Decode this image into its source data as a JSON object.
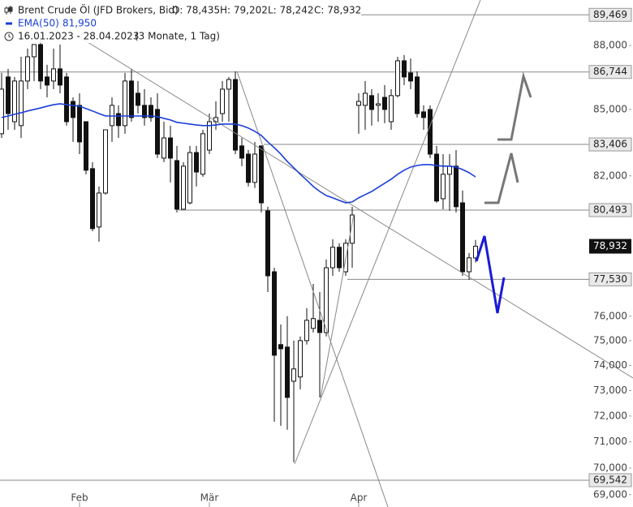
{
  "chart_data": {
    "type": "candlestick",
    "title": "Brent Crude Öl (JFD Brokers, Bid)",
    "ohlc_labels": [
      "O: 78,435",
      "H: 79,202",
      "L: 78,242",
      "C: 78,932"
    ],
    "date_range": "16.01.2023 - 28.04.2023",
    "period": "(3 Monate, 1 Tag)",
    "log_scale": true,
    "ylim": [
      68540,
      90190
    ],
    "yticks": [
      {
        "value": 88000,
        "label": "88,000"
      },
      {
        "value": 85000,
        "label": "85,000"
      },
      {
        "value": 82000,
        "label": "82,000"
      },
      {
        "value": 76000,
        "label": "76,000"
      },
      {
        "value": 75000,
        "label": "75,000"
      },
      {
        "value": 74000,
        "label": "74,000"
      },
      {
        "value": 73000,
        "label": "73,000"
      },
      {
        "value": 72000,
        "label": "72,000"
      },
      {
        "value": 71000,
        "label": "71,000"
      },
      {
        "value": 70000,
        "label": "70,000"
      },
      {
        "value": 69000,
        "label": "69,000"
      }
    ],
    "categories": [
      null,
      null,
      null,
      null,
      null,
      null,
      null,
      null,
      null,
      null,
      null,
      null,
      "Feb",
      null,
      null,
      null,
      null,
      null,
      null,
      null,
      null,
      null,
      null,
      null,
      null,
      null,
      null,
      null,
      null,
      null,
      null,
      null,
      "Mär",
      null,
      null,
      null,
      null,
      null,
      null,
      null,
      null,
      null,
      null,
      null,
      null,
      null,
      null,
      null,
      null,
      null,
      null,
      null,
      null,
      null,
      null,
      "Apr",
      null,
      null,
      null,
      null,
      null,
      null,
      null,
      null,
      null,
      null,
      null,
      null,
      null,
      null,
      null,
      null,
      null,
      null
    ],
    "open": [
      83890,
      86510,
      84440,
      84260,
      86320,
      87460,
      88040,
      86510,
      86320,
      86890,
      86510,
      85370,
      85190,
      84440,
      82320,
      79760,
      81240,
      84260,
      84810,
      84260,
      86320,
      85750,
      85190,
      85190,
      85000,
      82790,
      83700,
      82680,
      80530,
      80810,
      83040,
      82070,
      83150,
      84440,
      84810,
      85940,
      86390,
      83340,
      82970,
      81710,
      83340,
      80460,
      77850,
      74840,
      74740,
      73370,
      73540,
      75000,
      75500,
      75830,
      75330,
      78020,
      78890,
      77850,
      79060,
      85190,
      85190,
      85640,
      85190,
      85560,
      84440,
      85640,
      87270,
      86700,
      86510,
      84890,
      85000,
      82970,
      80990,
      82070,
      82430,
      80810,
      77850,
      78435
    ],
    "high": [
      86700,
      86890,
      86510,
      87460,
      87850,
      88040,
      88430,
      87080,
      87850,
      88040,
      86700,
      85560,
      85750,
      84440,
      82610,
      81530,
      84070,
      85560,
      85190,
      86700,
      86890,
      86320,
      85940,
      85560,
      85750,
      84440,
      84260,
      83340,
      82610,
      83340,
      83340,
      84070,
      84810,
      85370,
      86320,
      86510,
      86770,
      83700,
      83150,
      83520,
      83340,
      80640,
      78020,
      75660,
      76000,
      75000,
      75170,
      76330,
      77340,
      77000,
      78370,
      79230,
      79060,
      79230,
      80640,
      85750,
      86320,
      85940,
      85750,
      86130,
      85940,
      87460,
      87540,
      87380,
      86770,
      85190,
      85190,
      83340,
      82970,
      82970,
      83150,
      81350,
      78640,
      79202
    ],
    "low": [
      83700,
      84070,
      84070,
      83700,
      85940,
      86320,
      85940,
      85560,
      85940,
      85750,
      84260,
      83520,
      82970,
      82070,
      79580,
      79130,
      81170,
      83520,
      83700,
      83890,
      84440,
      84810,
      84260,
      84440,
      82790,
      82610,
      81710,
      80390,
      80530,
      80740,
      81530,
      81960,
      82970,
      84070,
      84440,
      84440,
      82970,
      82430,
      81530,
      81460,
      80390,
      77000,
      71780,
      71620,
      71470,
      70220,
      73050,
      74840,
      75330,
      72730,
      75170,
      77680,
      77850,
      77680,
      78020,
      83890,
      84070,
      84260,
      84440,
      84370,
      84070,
      85560,
      86130,
      85940,
      84630,
      84070,
      82790,
      80810,
      80530,
      80460,
      80390,
      77680,
      77510,
      78242
    ],
    "close": [
      85940,
      84810,
      86320,
      86320,
      87460,
      88040,
      86320,
      86130,
      86890,
      86130,
      84440,
      84630,
      83520,
      82250,
      79690,
      81240,
      84070,
      85190,
      84260,
      86320,
      84630,
      85190,
      84630,
      84630,
      82970,
      83700,
      82790,
      80530,
      82430,
      83040,
      82170,
      83890,
      84440,
      84630,
      85940,
      86390,
      83150,
      82790,
      81710,
      82970,
      80810,
      77680,
      74410,
      74670,
      72730,
      73860,
      75000,
      75830,
      75900,
      75330,
      78020,
      78890,
      78020,
      79060,
      80280,
      85370,
      85750,
      85000,
      85260,
      85000,
      85640,
      87270,
      86510,
      86320,
      84810,
      84630,
      82970,
      80890,
      82070,
      82430,
      80640,
      77850,
      78440,
      78932
    ],
    "series": [
      {
        "name": "EMA(50)",
        "color": "#1a3fd6",
        "last_value_label": "81,950",
        "values": [
          84630,
          84700,
          84780,
          84850,
          84930,
          85000,
          85070,
          85150,
          85220,
          85260,
          85220,
          85190,
          85150,
          85040,
          84930,
          84810,
          84700,
          84700,
          84700,
          84700,
          84700,
          84700,
          84700,
          84700,
          84670,
          84590,
          84520,
          84410,
          84370,
          84330,
          84290,
          84260,
          84260,
          84290,
          84330,
          84330,
          84330,
          84260,
          84150,
          84000,
          83810,
          83520,
          83260,
          82970,
          82640,
          82360,
          82070,
          81810,
          81530,
          81310,
          81130,
          81030,
          80920,
          80810,
          80850,
          81030,
          81170,
          81310,
          81490,
          81670,
          81850,
          82070,
          82250,
          82390,
          82460,
          82500,
          82500,
          82460,
          82430,
          82430,
          82390,
          82280,
          82140,
          81950
        ]
      }
    ],
    "levels": [
      {
        "value": 89469,
        "label": "89,469"
      },
      {
        "value": 86744,
        "label": "86,744"
      },
      {
        "value": 83406,
        "label": "83,406"
      },
      {
        "value": 80493,
        "label": "80,493"
      },
      {
        "value": 77530,
        "label": "77,530"
      },
      {
        "value": 69542,
        "label": "69,542"
      }
    ],
    "last_price_label": "78,932"
  }
}
